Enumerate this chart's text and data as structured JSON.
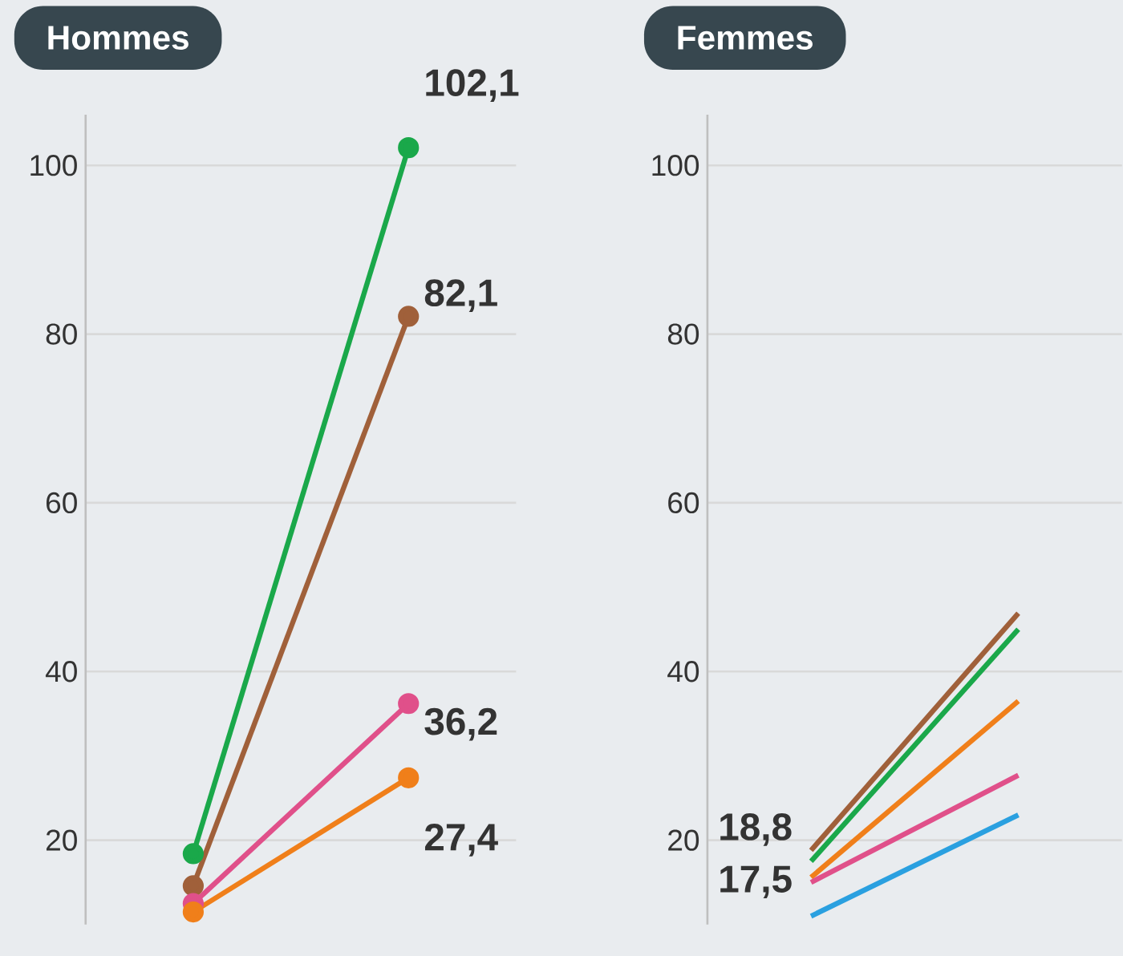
{
  "chart_data": [
    {
      "type": "line",
      "title": "Hommes",
      "categories": [
        null,
        null
      ],
      "ylim": [
        10,
        106
      ],
      "yticks": [
        20,
        40,
        60,
        80,
        100
      ],
      "grid": "y",
      "marker": "circle",
      "series": [
        {
          "color": "#1aa84a",
          "values": [
            18.4,
            102.1
          ],
          "value_labels": [
            null,
            "102,1"
          ]
        },
        {
          "color": "#a0603a",
          "values": [
            14.6,
            82.1
          ],
          "value_labels": [
            null,
            "82,1"
          ]
        },
        {
          "color": "#e0508a",
          "values": [
            12.5,
            36.2
          ],
          "value_labels": [
            null,
            "36,2"
          ]
        },
        {
          "color": "#f07f1a",
          "values": [
            11.5,
            27.4
          ],
          "value_labels": [
            null,
            "27,4"
          ]
        }
      ]
    },
    {
      "type": "line",
      "title": "Femmes",
      "categories": [
        null,
        null
      ],
      "ylim": [
        10,
        106
      ],
      "yticks": [
        20,
        40,
        60,
        80,
        100
      ],
      "tick_labels": "y",
      "grid": "y",
      "series": [
        {
          "color": "#a0603a",
          "values": [
            18.8,
            46.9
          ],
          "value_labels": [
            "18,8",
            null
          ]
        },
        {
          "color": "#1aa84a",
          "values": [
            17.5,
            45
          ],
          "value_labels": [
            "17,5",
            null
          ]
        },
        {
          "color": "#f07f1a",
          "values": [
            15.6,
            36.5
          ]
        },
        {
          "color": "#e0508a",
          "values": [
            15,
            27.7
          ]
        },
        {
          "color": "#2aa0e0",
          "values": [
            11,
            23
          ]
        }
      ]
    }
  ]
}
